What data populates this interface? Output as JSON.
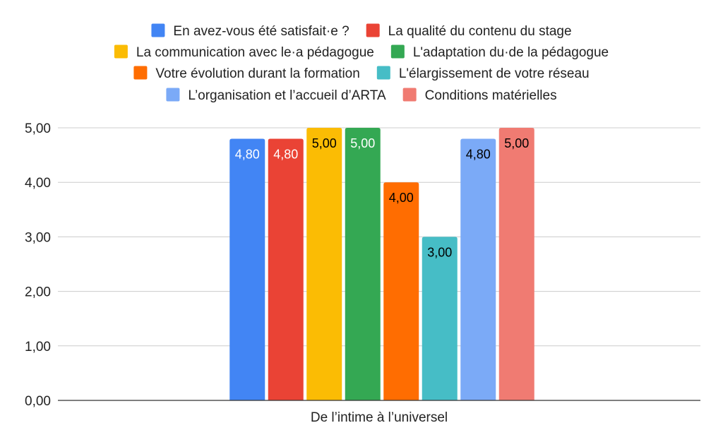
{
  "chart_data": {
    "type": "bar",
    "categories": [
      "De l’intime à l’universel"
    ],
    "series": [
      {
        "name": "En avez-vous été satisfait·e ?",
        "values": [
          4.8
        ],
        "label": "4,80",
        "color": "#4285F4",
        "label_color": "#ffffff"
      },
      {
        "name": "La qualité du contenu du stage",
        "values": [
          4.8
        ],
        "label": "4,80",
        "color": "#EA4335",
        "label_color": "#ffffff"
      },
      {
        "name": "La communication avec le·a pédagogue",
        "values": [
          5.0
        ],
        "label": "5,00",
        "color": "#FBBC04",
        "label_color": "#000000"
      },
      {
        "name": "L'adaptation du·de la pédagogue",
        "values": [
          5.0
        ],
        "label": "5,00",
        "color": "#34A853",
        "label_color": "#ffffff"
      },
      {
        "name": "Votre évolution durant la formation",
        "values": [
          4.0
        ],
        "label": "4,00",
        "color": "#FF6D01",
        "label_color": "#000000"
      },
      {
        "name": "L'élargissement de votre réseau",
        "values": [
          3.0
        ],
        "label": "3,00",
        "color": "#46BDC6",
        "label_color": "#000000"
      },
      {
        "name": "L’organisation et l’accueil d’ARTA",
        "values": [
          4.8
        ],
        "label": "4,80",
        "color": "#7BAAF7",
        "label_color": "#000000"
      },
      {
        "name": "Conditions matérielles",
        "values": [
          5.0
        ],
        "label": "5,00",
        "color": "#F07B72",
        "label_color": "#000000"
      }
    ],
    "y_ticks": [
      "0,00",
      "1,00",
      "2,00",
      "3,00",
      "4,00",
      "5,00"
    ],
    "ylim": [
      0,
      5
    ],
    "grid": true,
    "legend_position": "top"
  }
}
